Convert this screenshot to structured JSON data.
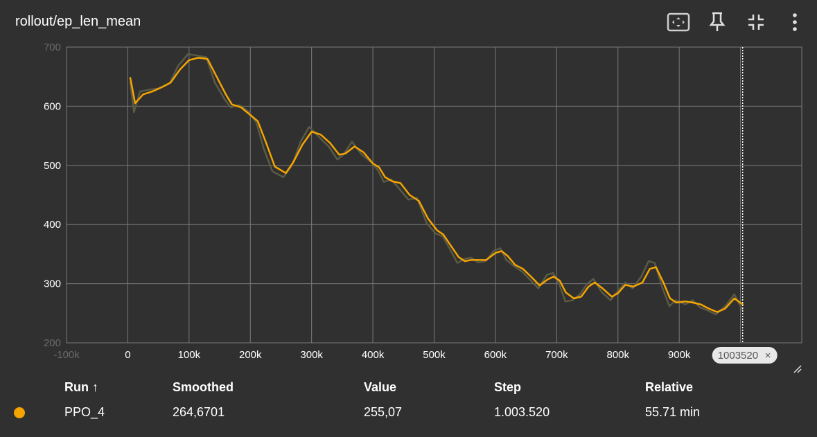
{
  "title": "rollout/ep_len_mean",
  "toolbar": [
    {
      "name": "fit-domain-icon"
    },
    {
      "name": "pin-icon"
    },
    {
      "name": "collapse-icon"
    },
    {
      "name": "more-vertical-icon"
    }
  ],
  "colors": {
    "background": "#303030",
    "grid": "#7a7a7a",
    "smoothed": "#f5a500",
    "raw": "#5b5a46"
  },
  "chart_data": {
    "type": "line",
    "xlim": [
      -100000,
      1100000
    ],
    "ylim": [
      200,
      700
    ],
    "x_ticks": [
      "-100k",
      "0",
      "100k",
      "200k",
      "300k",
      "400k",
      "500k",
      "600k",
      "700k",
      "800k",
      "900k",
      "1M"
    ],
    "y_ticks": [
      "200",
      "300",
      "400",
      "500",
      "600",
      "700"
    ],
    "grid": true,
    "hover_step": 1003520,
    "hover_step_label": "1003520",
    "series": [
      {
        "name": "PPO_4",
        "role": "smoothed",
        "points": [
          [
            4000,
            648
          ],
          [
            12000,
            605
          ],
          [
            25000,
            620
          ],
          [
            40000,
            625
          ],
          [
            55000,
            632
          ],
          [
            70000,
            640
          ],
          [
            85000,
            662
          ],
          [
            100000,
            678
          ],
          [
            115000,
            682
          ],
          [
            130000,
            680
          ],
          [
            145000,
            650
          ],
          [
            160000,
            620
          ],
          [
            170000,
            603
          ],
          [
            185000,
            598
          ],
          [
            200000,
            585
          ],
          [
            212000,
            575
          ],
          [
            225000,
            540
          ],
          [
            240000,
            498
          ],
          [
            258000,
            487
          ],
          [
            270000,
            505
          ],
          [
            285000,
            535
          ],
          [
            300000,
            557
          ],
          [
            315000,
            552
          ],
          [
            330000,
            538
          ],
          [
            345000,
            518
          ],
          [
            355000,
            520
          ],
          [
            370000,
            532
          ],
          [
            385000,
            522
          ],
          [
            400000,
            503
          ],
          [
            410000,
            497
          ],
          [
            420000,
            480
          ],
          [
            432000,
            473
          ],
          [
            445000,
            470
          ],
          [
            460000,
            450
          ],
          [
            475000,
            440
          ],
          [
            490000,
            410
          ],
          [
            505000,
            390
          ],
          [
            515000,
            383
          ],
          [
            528000,
            363
          ],
          [
            540000,
            345
          ],
          [
            550000,
            338
          ],
          [
            560000,
            340
          ],
          [
            575000,
            340
          ],
          [
            585000,
            340
          ],
          [
            600000,
            352
          ],
          [
            610000,
            355
          ],
          [
            620000,
            347
          ],
          [
            632000,
            332
          ],
          [
            645000,
            325
          ],
          [
            660000,
            310
          ],
          [
            672000,
            297
          ],
          [
            685000,
            307
          ],
          [
            695000,
            312
          ],
          [
            705000,
            305
          ],
          [
            715000,
            285
          ],
          [
            728000,
            275
          ],
          [
            740000,
            278
          ],
          [
            752000,
            295
          ],
          [
            762000,
            302
          ],
          [
            775000,
            292
          ],
          [
            790000,
            278
          ],
          [
            800000,
            284
          ],
          [
            812000,
            298
          ],
          [
            825000,
            295
          ],
          [
            840000,
            302
          ],
          [
            852000,
            325
          ],
          [
            862000,
            328
          ],
          [
            875000,
            300
          ],
          [
            885000,
            275
          ],
          [
            895000,
            268
          ],
          [
            910000,
            270
          ],
          [
            922000,
            268
          ],
          [
            935000,
            265
          ],
          [
            948000,
            258
          ],
          [
            962000,
            252
          ],
          [
            975000,
            258
          ],
          [
            990000,
            275
          ],
          [
            1003520,
            265
          ]
        ]
      },
      {
        "name": "PPO_4 raw",
        "role": "raw",
        "points": [
          [
            4000,
            640
          ],
          [
            10000,
            590
          ],
          [
            20000,
            625
          ],
          [
            35000,
            628
          ],
          [
            50000,
            630
          ],
          [
            68000,
            638
          ],
          [
            82000,
            668
          ],
          [
            98000,
            688
          ],
          [
            112000,
            686
          ],
          [
            128000,
            683
          ],
          [
            142000,
            640
          ],
          [
            158000,
            612
          ],
          [
            168000,
            598
          ],
          [
            182000,
            602
          ],
          [
            198000,
            590
          ],
          [
            210000,
            572
          ],
          [
            222000,
            528
          ],
          [
            236000,
            490
          ],
          [
            254000,
            480
          ],
          [
            268000,
            500
          ],
          [
            282000,
            540
          ],
          [
            296000,
            565
          ],
          [
            312000,
            548
          ],
          [
            328000,
            532
          ],
          [
            342000,
            510
          ],
          [
            352000,
            518
          ],
          [
            366000,
            540
          ],
          [
            382000,
            518
          ],
          [
            398000,
            505
          ],
          [
            408000,
            492
          ],
          [
            418000,
            472
          ],
          [
            430000,
            476
          ],
          [
            442000,
            462
          ],
          [
            458000,
            442
          ],
          [
            472000,
            445
          ],
          [
            488000,
            402
          ],
          [
            502000,
            385
          ],
          [
            514000,
            380
          ],
          [
            526000,
            358
          ],
          [
            538000,
            335
          ],
          [
            550000,
            342
          ],
          [
            560000,
            344
          ],
          [
            572000,
            336
          ],
          [
            584000,
            338
          ],
          [
            598000,
            356
          ],
          [
            608000,
            360
          ],
          [
            618000,
            340
          ],
          [
            630000,
            330
          ],
          [
            644000,
            320
          ],
          [
            658000,
            305
          ],
          [
            670000,
            292
          ],
          [
            684000,
            315
          ],
          [
            694000,
            318
          ],
          [
            704000,
            300
          ],
          [
            714000,
            270
          ],
          [
            726000,
            272
          ],
          [
            738000,
            282
          ],
          [
            750000,
            300
          ],
          [
            760000,
            308
          ],
          [
            774000,
            285
          ],
          [
            788000,
            272
          ],
          [
            800000,
            288
          ],
          [
            812000,
            302
          ],
          [
            824000,
            292
          ],
          [
            838000,
            312
          ],
          [
            850000,
            338
          ],
          [
            860000,
            335
          ],
          [
            872000,
            295
          ],
          [
            884000,
            262
          ],
          [
            894000,
            272
          ],
          [
            910000,
            265
          ],
          [
            922000,
            272
          ],
          [
            934000,
            260
          ],
          [
            946000,
            255
          ],
          [
            960000,
            248
          ],
          [
            975000,
            262
          ],
          [
            990000,
            282
          ],
          [
            1003520,
            255
          ]
        ]
      }
    ]
  },
  "table": {
    "headers": {
      "run": "Run ↑",
      "smoothed": "Smoothed",
      "value": "Value",
      "step": "Step",
      "relative": "Relative"
    },
    "rows": [
      {
        "run": "PPO_4",
        "smoothed": "264,6701",
        "value": "255,07",
        "step": "1.003.520",
        "relative": "55.71 min",
        "color": "#f5a500"
      }
    ]
  }
}
